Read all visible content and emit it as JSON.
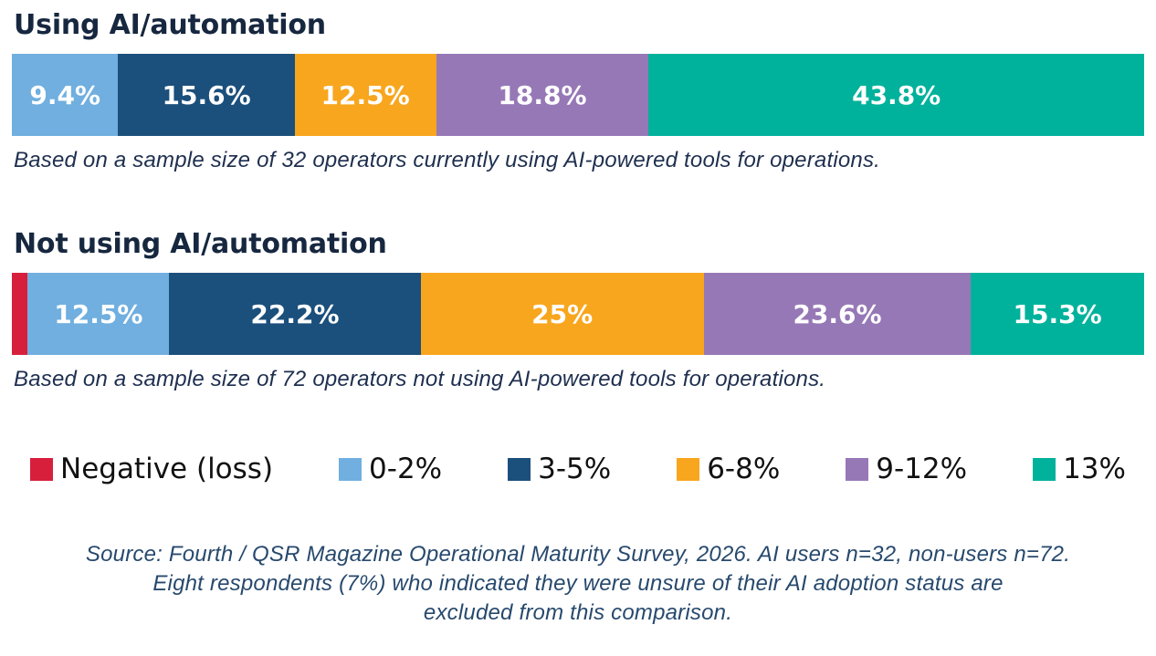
{
  "colors": {
    "negative": "#D71F3C",
    "range_0_2": "#70AFDF",
    "range_3_5": "#1B4F7C",
    "range_6_8": "#F8A61E",
    "range_9_12": "#9678B6",
    "range_13": "#00B29B",
    "title_navy": "#16273F",
    "caption_navy": "#1E2F4F",
    "source_navy": "#27496D",
    "legend_text": "#111111"
  },
  "sections": [
    {
      "title": "Using AI/automation",
      "caption": "Based on a sample size of 32 operators currently using AI-powered tools for operations.",
      "segments": [
        {
          "label": "9.4%",
          "value": 9.4,
          "color": "range_0_2"
        },
        {
          "label": "15.6%",
          "value": 15.6,
          "color": "range_3_5"
        },
        {
          "label": "12.5%",
          "value": 12.5,
          "color": "range_6_8"
        },
        {
          "label": "18.8%",
          "value": 18.8,
          "color": "range_9_12"
        },
        {
          "label": "43.8%",
          "value": 43.8,
          "color": "range_13"
        }
      ]
    },
    {
      "title": "Not using AI/automation",
      "caption": "Based on a sample size of 72 operators not using AI-powered tools for operations.",
      "segments": [
        {
          "label": "",
          "value": 1.4,
          "color": "negative"
        },
        {
          "label": "12.5%",
          "value": 12.5,
          "color": "range_0_2"
        },
        {
          "label": "22.2%",
          "value": 22.2,
          "color": "range_3_5"
        },
        {
          "label": "25%",
          "value": 25,
          "color": "range_6_8"
        },
        {
          "label": "23.6%",
          "value": 23.6,
          "color": "range_9_12"
        },
        {
          "label": "15.3%",
          "value": 15.3,
          "color": "range_13"
        }
      ]
    }
  ],
  "legend": [
    {
      "label": "Negative (loss)",
      "color": "negative"
    },
    {
      "label": "0-2%",
      "color": "range_0_2"
    },
    {
      "label": "3-5%",
      "color": "range_3_5"
    },
    {
      "label": "6-8%",
      "color": "range_6_8"
    },
    {
      "label": "9-12%",
      "color": "range_9_12"
    },
    {
      "label": "13%",
      "color": "range_13"
    }
  ],
  "source": {
    "lines": [
      "Source: Fourth / QSR Magazine Operational Maturity Survey, 2026. AI users n=32, non-users n=72.",
      "Eight respondents (7%) who indicated they were unsure of their AI adoption status are",
      "excluded from this comparison."
    ]
  },
  "chart_data": {
    "type": "bar",
    "stacked": true,
    "orientation": "horizontal",
    "percent_scale": true,
    "categories": [
      "Using AI/automation",
      "Not using AI/automation"
    ],
    "series": [
      {
        "name": "Negative (loss)",
        "color": "#D71F3C",
        "values": [
          0,
          1.4
        ]
      },
      {
        "name": "0-2%",
        "color": "#70AFDF",
        "values": [
          9.4,
          12.5
        ]
      },
      {
        "name": "3-5%",
        "color": "#1B4F7C",
        "values": [
          15.6,
          22.2
        ]
      },
      {
        "name": "6-8%",
        "color": "#F8A61E",
        "values": [
          12.5,
          25
        ]
      },
      {
        "name": "9-12%",
        "color": "#9678B6",
        "values": [
          18.8,
          23.6
        ]
      },
      {
        "name": "13%",
        "color": "#00B29B",
        "values": [
          43.8,
          15.3
        ]
      }
    ],
    "value_labels": [
      [
        "9.4%",
        "15.6%",
        "12.5%",
        "18.8%",
        "43.8%"
      ],
      [
        "",
        "12.5%",
        "22.2%",
        "25%",
        "23.6%",
        "15.3%"
      ]
    ],
    "xlim": [
      0,
      100
    ],
    "grid": false,
    "legend_position": "bottom",
    "annotations": [
      "Based on a sample size of 32 operators currently using AI-powered tools for operations.",
      "Based on a sample size of 72 operators not using AI-powered tools for operations."
    ]
  }
}
